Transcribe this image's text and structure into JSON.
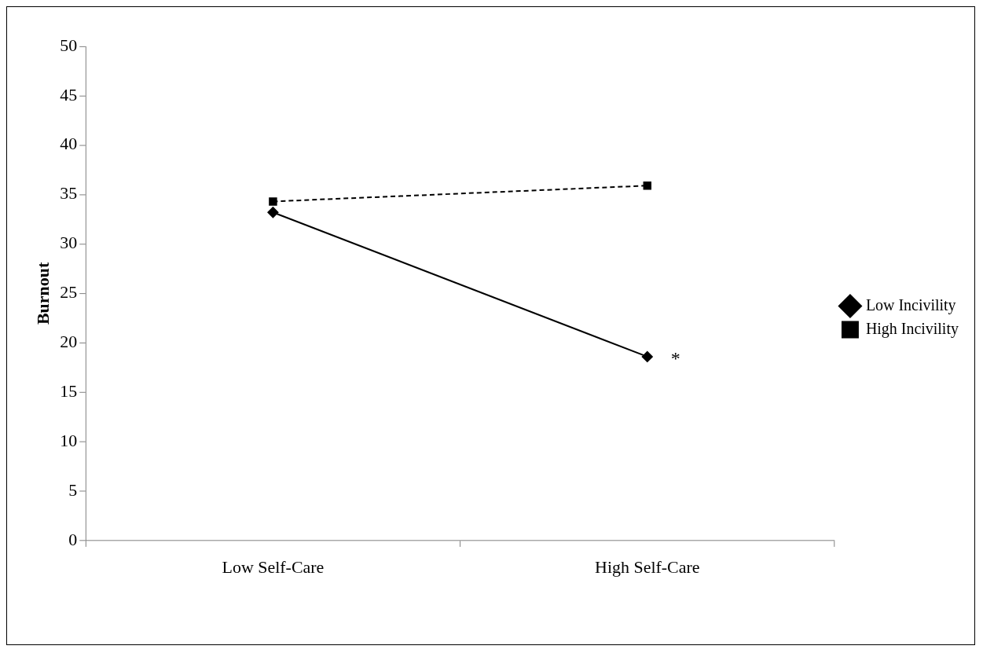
{
  "chart_data": {
    "type": "line",
    "ylabel": "Burnout",
    "categories": [
      "Low Self-Care",
      "High Self-Care"
    ],
    "series": [
      {
        "name": "Low Incivility",
        "color": "#000000",
        "values": [
          33.2,
          18.6
        ],
        "marker": "diamond",
        "line_style": "solid"
      },
      {
        "name": "High Incivility",
        "color": "#000000",
        "values": [
          34.3,
          35.9
        ],
        "marker": "square",
        "line_style": "dashed"
      }
    ],
    "ylim": [
      0,
      50
    ],
    "yticks": [
      0,
      5,
      10,
      15,
      20,
      25,
      30,
      35,
      40,
      45,
      50
    ],
    "grid": false,
    "legend": "right",
    "annotations": [
      {
        "text": "*",
        "x": "High Self-Care",
        "y": 18.6
      }
    ]
  }
}
